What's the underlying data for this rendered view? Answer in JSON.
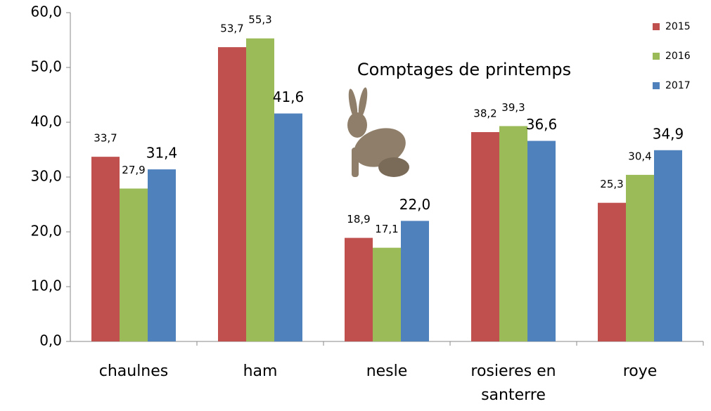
{
  "chart_data": {
    "type": "bar",
    "title": "Comptages de printemps",
    "categories": [
      "chaulnes",
      "ham",
      "nesle",
      "rosieres en santerre",
      "roye"
    ],
    "series": [
      {
        "name": "2015",
        "color": "#c0504d",
        "values": [
          33.7,
          53.7,
          18.9,
          38.2,
          25.3
        ],
        "value_labels": [
          "33,7",
          "53,7",
          "18,9",
          "38,2",
          "25,3"
        ]
      },
      {
        "name": "2016",
        "color": "#9bbb59",
        "values": [
          27.9,
          55.3,
          17.1,
          39.3,
          30.4
        ],
        "value_labels": [
          "27,9",
          "55,3",
          "17,1",
          "39,3",
          "30,4"
        ]
      },
      {
        "name": "2017",
        "color": "#4f81bd",
        "values": [
          31.4,
          41.6,
          22.0,
          36.6,
          34.9
        ],
        "value_labels": [
          "31,4",
          "41,6",
          "22,0",
          "36,6",
          "34,9"
        ]
      }
    ],
    "ylim": [
      0,
      60
    ],
    "yticks": [
      {
        "value": 0,
        "label": "0,0"
      },
      {
        "value": 10,
        "label": "10,0"
      },
      {
        "value": 20,
        "label": "20,0"
      },
      {
        "value": 30,
        "label": "30,0"
      },
      {
        "value": 40,
        "label": "40,0"
      },
      {
        "value": 50,
        "label": "50,0"
      },
      {
        "value": 60,
        "label": "60,0"
      }
    ],
    "legend": "top-right",
    "grid": false
  }
}
